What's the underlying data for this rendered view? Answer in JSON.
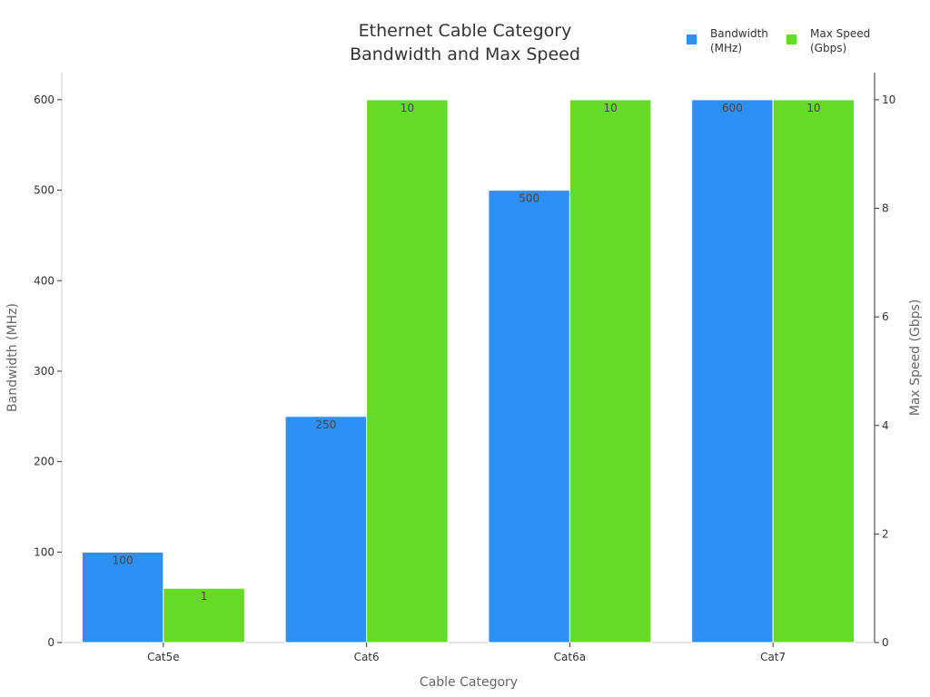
{
  "chart_data": {
    "type": "bar",
    "title": [
      "Ethernet Cable Category",
      "Bandwidth and Max Speed"
    ],
    "xlabel": "Cable Category",
    "ylabel_left": "Bandwidth (MHz)",
    "ylabel_right": "Max Speed (Gbps)",
    "categories": [
      "Cat5e",
      "Cat6",
      "Cat6a",
      "Cat7"
    ],
    "series": [
      {
        "name": [
          "Bandwidth",
          "(MHz)"
        ],
        "axis": "left",
        "color": "#2e90f5",
        "values": [
          100,
          250,
          500,
          600
        ],
        "labels": [
          "100",
          "250",
          "500",
          "600"
        ]
      },
      {
        "name": [
          "Max Speed",
          "(Gbps)"
        ],
        "axis": "right",
        "color": "#66d929",
        "values": [
          1,
          10,
          10,
          10
        ],
        "labels": [
          "1",
          "10",
          "10",
          "10"
        ]
      }
    ],
    "ylim_left": [
      0,
      630
    ],
    "yticks_left": [
      0,
      100,
      200,
      300,
      400,
      500,
      600
    ],
    "ylim_right": [
      0,
      10.5
    ],
    "yticks_right": [
      0,
      2,
      4,
      6,
      8,
      10
    ],
    "grid": false,
    "legend_position": "top-right",
    "data_labels": "inside-top"
  }
}
